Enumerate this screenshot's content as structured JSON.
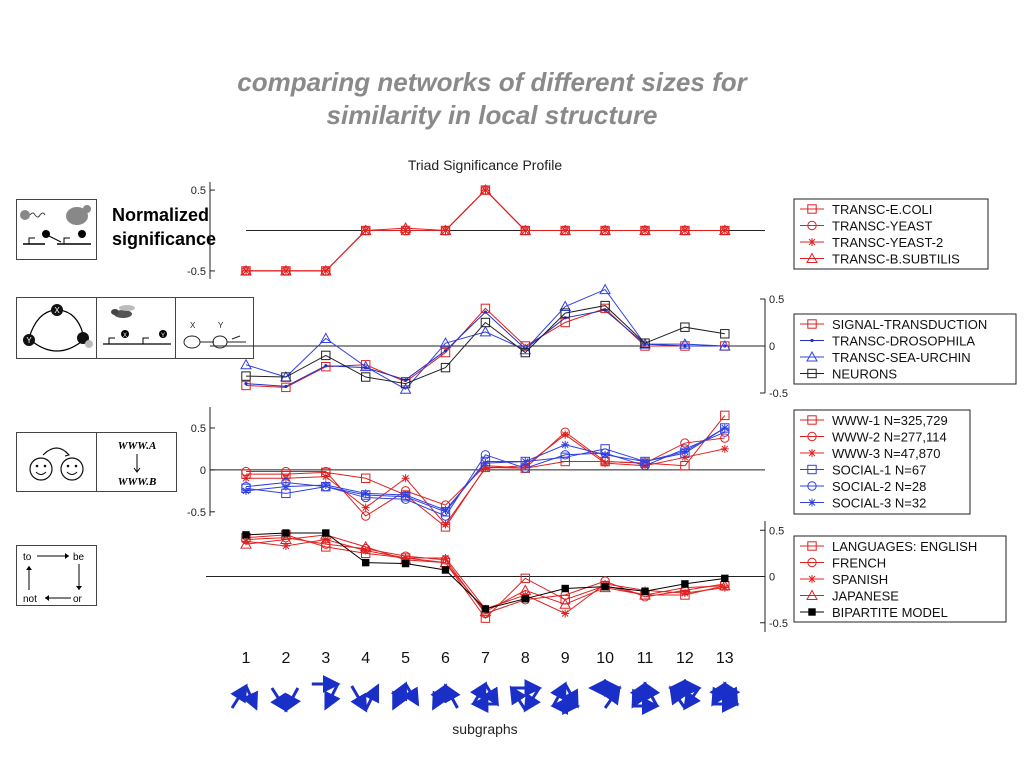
{
  "slide_title_lines": [
    "comparing networks of different sizes for",
    "similarity in local structure"
  ],
  "ylabel_lines": [
    "Normalized",
    "significance"
  ],
  "chart_data": {
    "type": "line",
    "title": "Triad Significance Profile",
    "xlabel": "subgraphs",
    "categories": [
      "1",
      "2",
      "3",
      "4",
      "5",
      "6",
      "7",
      "8",
      "9",
      "10",
      "11",
      "12",
      "13"
    ],
    "panels": [
      {
        "ylim": [
          -0.6,
          0.6
        ],
        "ticks": [
          "0.5",
          "-0.5"
        ],
        "tick_values": [
          0.5,
          -0.5
        ],
        "axis_side": "left",
        "series": [
          {
            "name": "TRANSC-E.COLI",
            "marker": "square",
            "color": "#e02020",
            "values": [
              -0.5,
              -0.5,
              -0.5,
              0,
              0,
              0,
              0.5,
              0,
              0,
              0,
              0,
              0,
              0
            ]
          },
          {
            "name": "TRANSC-YEAST",
            "marker": "circle",
            "color": "#e02020",
            "values": [
              -0.5,
              -0.5,
              -0.5,
              0,
              0,
              0,
              0.5,
              0,
              0,
              0,
              0,
              0,
              0
            ]
          },
          {
            "name": "TRANSC-YEAST-2",
            "marker": "star",
            "color": "#e02020",
            "values": [
              -0.5,
              -0.5,
              -0.5,
              0,
              0,
              0,
              0.5,
              0,
              0,
              0,
              0,
              0,
              0
            ]
          },
          {
            "name": "TRANSC-B.SUBTILIS",
            "marker": "triangle",
            "color": "#e02020",
            "values": [
              -0.5,
              -0.5,
              -0.5,
              0,
              0.03,
              0,
              0.5,
              0,
              0,
              0,
              0,
              0,
              0
            ]
          }
        ]
      },
      {
        "ylim": [
          -0.5,
          0.5
        ],
        "ticks": [
          "0.5",
          "0",
          "-0.5"
        ],
        "tick_values": [
          0.5,
          0,
          -0.5
        ],
        "axis_side": "right",
        "series": [
          {
            "name": "SIGNAL-TRANSDUCTION",
            "marker": "square",
            "color": "#e02020",
            "values": [
              -0.42,
              -0.44,
              -0.22,
              -0.2,
              -0.38,
              -0.07,
              0.4,
              0.0,
              0.25,
              0.4,
              0.0,
              0.0,
              0.0
            ]
          },
          {
            "name": "TRANSC-DROSOPHILA",
            "marker": "dot",
            "color": "#2030c0",
            "values": [
              -0.4,
              -0.43,
              -0.21,
              -0.23,
              -0.36,
              -0.05,
              0.36,
              -0.03,
              0.3,
              0.38,
              0.02,
              0.0,
              0.0
            ]
          },
          {
            "name": "TRANSC-SEA-URCHIN",
            "marker": "triangle",
            "color": "#3040e0",
            "values": [
              -0.2,
              -0.33,
              0.08,
              -0.22,
              -0.46,
              0.03,
              0.15,
              -0.04,
              0.42,
              0.6,
              0.02,
              0.02,
              0.0
            ]
          },
          {
            "name": "NEURONS",
            "marker": "square",
            "color": "#222222",
            "values": [
              -0.32,
              -0.33,
              -0.1,
              -0.33,
              -0.4,
              -0.23,
              0.25,
              -0.07,
              0.35,
              0.43,
              0.03,
              0.2,
              0.13
            ]
          }
        ]
      },
      {
        "ylim": [
          -0.55,
          0.75
        ],
        "ticks": [
          "0.5",
          "0",
          "-0.5"
        ],
        "tick_values": [
          0.5,
          0,
          -0.5
        ],
        "axis_side": "left",
        "series": [
          {
            "name": "WWW-1 N=325,729",
            "marker": "square",
            "color": "#e02020",
            "values": [
              -0.05,
              -0.05,
              -0.03,
              -0.1,
              -0.3,
              -0.68,
              0.03,
              0.02,
              0.1,
              0.1,
              0.08,
              0.05,
              0.65
            ]
          },
          {
            "name": "WWW-2 N=277,114",
            "marker": "circle",
            "color": "#e02020",
            "values": [
              -0.02,
              -0.02,
              -0.02,
              -0.55,
              -0.25,
              -0.42,
              0.05,
              0.02,
              0.45,
              0.1,
              0.08,
              0.32,
              0.38
            ]
          },
          {
            "name": "WWW-3 N=47,870",
            "marker": "star",
            "color": "#e02020",
            "values": [
              -0.1,
              -0.1,
              -0.08,
              -0.45,
              -0.1,
              -0.65,
              0.02,
              0.05,
              0.42,
              0.08,
              0.05,
              0.15,
              0.25
            ]
          },
          {
            "name": "SOCIAL-1 N=67",
            "marker": "square",
            "color": "#3040e0",
            "values": [
              -0.22,
              -0.28,
              -0.2,
              -0.3,
              -0.32,
              -0.5,
              0.1,
              0.1,
              0.15,
              0.25,
              0.1,
              0.2,
              0.5
            ]
          },
          {
            "name": "SOCIAL-2 N=28",
            "marker": "circle",
            "color": "#3040e0",
            "values": [
              -0.2,
              -0.15,
              -0.2,
              -0.33,
              -0.35,
              -0.55,
              0.18,
              0.02,
              0.18,
              0.2,
              0.05,
              0.25,
              0.45
            ]
          },
          {
            "name": "SOCIAL-3 N=32",
            "marker": "star",
            "color": "#3040e0",
            "values": [
              -0.25,
              -0.2,
              -0.18,
              -0.28,
              -0.3,
              -0.48,
              0.08,
              0.1,
              0.3,
              0.18,
              0.1,
              0.22,
              0.5
            ]
          }
        ]
      },
      {
        "ylim": [
          -0.6,
          0.6
        ],
        "ticks": [
          "0.5",
          "0",
          "-0.5"
        ],
        "tick_values": [
          0.5,
          0,
          -0.5
        ],
        "axis_side": "right",
        "series": [
          {
            "name": "LANGUAGES: ENGLISH",
            "marker": "square",
            "color": "#e02020",
            "values": [
              0.42,
              0.45,
              0.32,
              0.25,
              0.2,
              0.15,
              -0.45,
              -0.02,
              -0.25,
              -0.1,
              -0.2,
              -0.2,
              -0.1
            ]
          },
          {
            "name": "FRENCH",
            "marker": "circle",
            "color": "#e02020",
            "values": [
              0.4,
              0.42,
              0.35,
              0.3,
              0.22,
              0.18,
              -0.4,
              -0.25,
              -0.2,
              -0.05,
              -0.22,
              -0.15,
              -0.08
            ]
          },
          {
            "name": "SPANISH",
            "marker": "star",
            "color": "#e02020",
            "values": [
              0.38,
              0.33,
              0.4,
              0.28,
              0.2,
              0.2,
              -0.35,
              -0.2,
              -0.4,
              -0.08,
              -0.15,
              -0.18,
              -0.12
            ]
          },
          {
            "name": "JAPANESE",
            "marker": "triangle",
            "color": "#e02020",
            "values": [
              0.35,
              0.4,
              0.45,
              0.32,
              0.18,
              0.15,
              -0.38,
              -0.15,
              -0.3,
              -0.12,
              -0.2,
              -0.12,
              -0.1
            ]
          },
          {
            "name": "BIPARTITE MODEL",
            "marker": "filled-square",
            "color": "#000000",
            "values": [
              0.45,
              0.47,
              0.47,
              0.15,
              0.14,
              0.07,
              -0.35,
              -0.24,
              -0.13,
              -0.11,
              -0.16,
              -0.08,
              -0.02
            ]
          }
        ]
      }
    ]
  },
  "icon_labels": {
    "node_x": "X",
    "node_y": "Y",
    "fly_x": "X",
    "fly_y": "Y",
    "neuron_x": "X",
    "neuron_y": "Y",
    "www_a": "WWW.A",
    "www_b": "WWW.B",
    "lang_to": "to",
    "lang_be": "be",
    "lang_not": "not",
    "lang_or": "or"
  }
}
